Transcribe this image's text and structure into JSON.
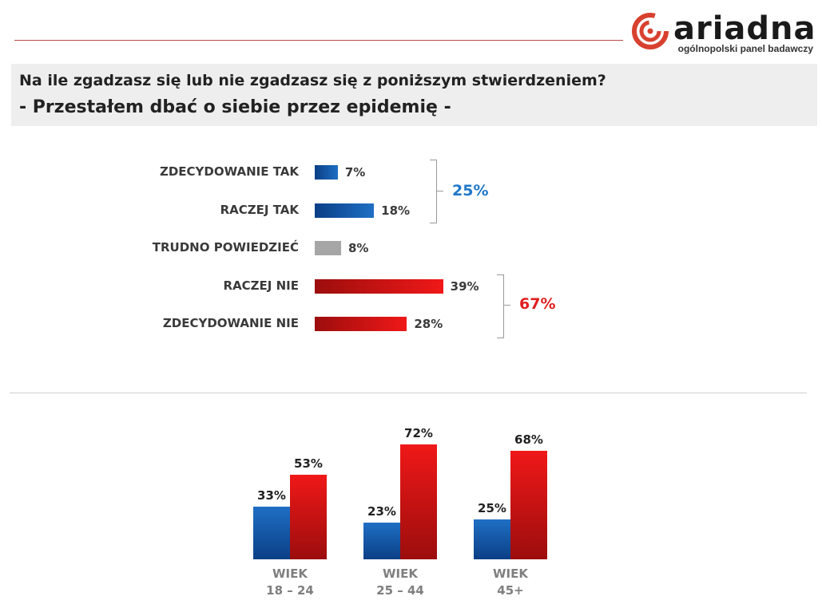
{
  "logo": {
    "word": "ariadna",
    "tagline": "ogólnopolski panel badawczy"
  },
  "header": {
    "question": "Na ile zgadzasz się lub nie zgadzasz się z poniższym stwierdzeniem?",
    "statement": "- Przestałem dbać o siebie przez epidemię -"
  },
  "colors": {
    "blue": "#1f6fc4",
    "blue_dark": "#0b3f86",
    "red": "#f01818",
    "red_dark": "#9c0d0d",
    "gray": "#a6a6a6",
    "total_blue": "#1f78c8",
    "total_red": "#e01f1f"
  },
  "chart_data": [
    {
      "type": "bar",
      "orientation": "horizontal",
      "categories": [
        "ZDECYDOWANIE TAK",
        "RACZEJ TAK",
        "TRUDNO POWIEDZIEĆ",
        "RACZEJ NIE",
        "ZDECYDOWANIE NIE"
      ],
      "values": [
        7,
        18,
        8,
        39,
        28
      ],
      "value_labels": [
        "7%",
        "18%",
        "8%",
        "39%",
        "28%"
      ],
      "bar_colors": [
        "blue",
        "blue",
        "gray",
        "red",
        "red"
      ],
      "totals": [
        {
          "label": "25%",
          "value": 25,
          "covers": [
            "ZDECYDOWANIE TAK",
            "RACZEJ TAK"
          ],
          "color": "blue"
        },
        {
          "label": "67%",
          "value": 67,
          "covers": [
            "RACZEJ NIE",
            "ZDECYDOWANIE NIE"
          ],
          "color": "red"
        }
      ]
    },
    {
      "type": "bar",
      "orientation": "vertical",
      "categories": [
        [
          "WIEK",
          "18 – 24"
        ],
        [
          "WIEK",
          "25 – 44"
        ],
        [
          "WIEK",
          "45+"
        ]
      ],
      "series": [
        {
          "values": [
            33,
            23,
            25
          ],
          "labels": [
            "33%",
            "23%",
            "25%"
          ],
          "color": "blue"
        },
        {
          "values": [
            53,
            72,
            68
          ],
          "labels": [
            "53%",
            "72%",
            "68%"
          ],
          "color": "red"
        }
      ]
    }
  ]
}
